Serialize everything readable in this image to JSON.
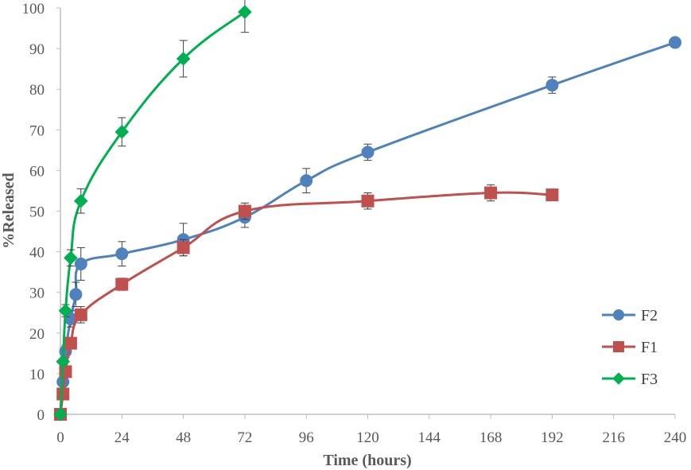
{
  "chart_data": {
    "type": "line",
    "title": "",
    "xlabel": "Time (hours)",
    "ylabel": "%Released",
    "xlim": [
      0,
      240
    ],
    "ylim": [
      0,
      100
    ],
    "x_ticks": [
      "0",
      "24",
      "48",
      "72",
      "96",
      "120",
      "144",
      "168",
      "192",
      "216",
      "240"
    ],
    "y_ticks": [
      "0",
      "10",
      "20",
      "30",
      "40",
      "50",
      "60",
      "70",
      "80",
      "90",
      "100"
    ],
    "grid": false,
    "legend_position": "bottom-right",
    "series": [
      {
        "name": "F2",
        "color": "#4f81bd",
        "marker": "circle",
        "x": [
          0,
          1,
          2,
          4,
          6,
          8,
          24,
          48,
          72,
          96,
          120,
          192,
          240
        ],
        "y": [
          0,
          8,
          15.5,
          23.5,
          29.5,
          37,
          39.5,
          43,
          48.5,
          57.5,
          64.5,
          81,
          91.5
        ],
        "err": [
          0,
          1,
          1.5,
          2,
          3,
          4,
          3,
          4,
          2.5,
          3,
          2,
          2,
          0
        ]
      },
      {
        "name": "F1",
        "color": "#c0504d",
        "marker": "square",
        "x": [
          0,
          1,
          2,
          4,
          8,
          24,
          48,
          72,
          120,
          168,
          192
        ],
        "y": [
          0,
          5,
          10.5,
          17.5,
          24.5,
          32,
          41,
          50,
          52.5,
          54.5,
          54
        ],
        "err": [
          0,
          0.5,
          1,
          1,
          2,
          1.5,
          2,
          2,
          2,
          2,
          0
        ]
      },
      {
        "name": "F3",
        "color": "#00b050",
        "marker": "diamond",
        "x": [
          0,
          1,
          2,
          4,
          8,
          24,
          48,
          72
        ],
        "y": [
          0,
          13,
          25.5,
          38.5,
          52.5,
          69.5,
          87.5,
          99
        ],
        "err": [
          0,
          0.5,
          1.5,
          2,
          3,
          3.5,
          4.5,
          5
        ]
      }
    ]
  }
}
